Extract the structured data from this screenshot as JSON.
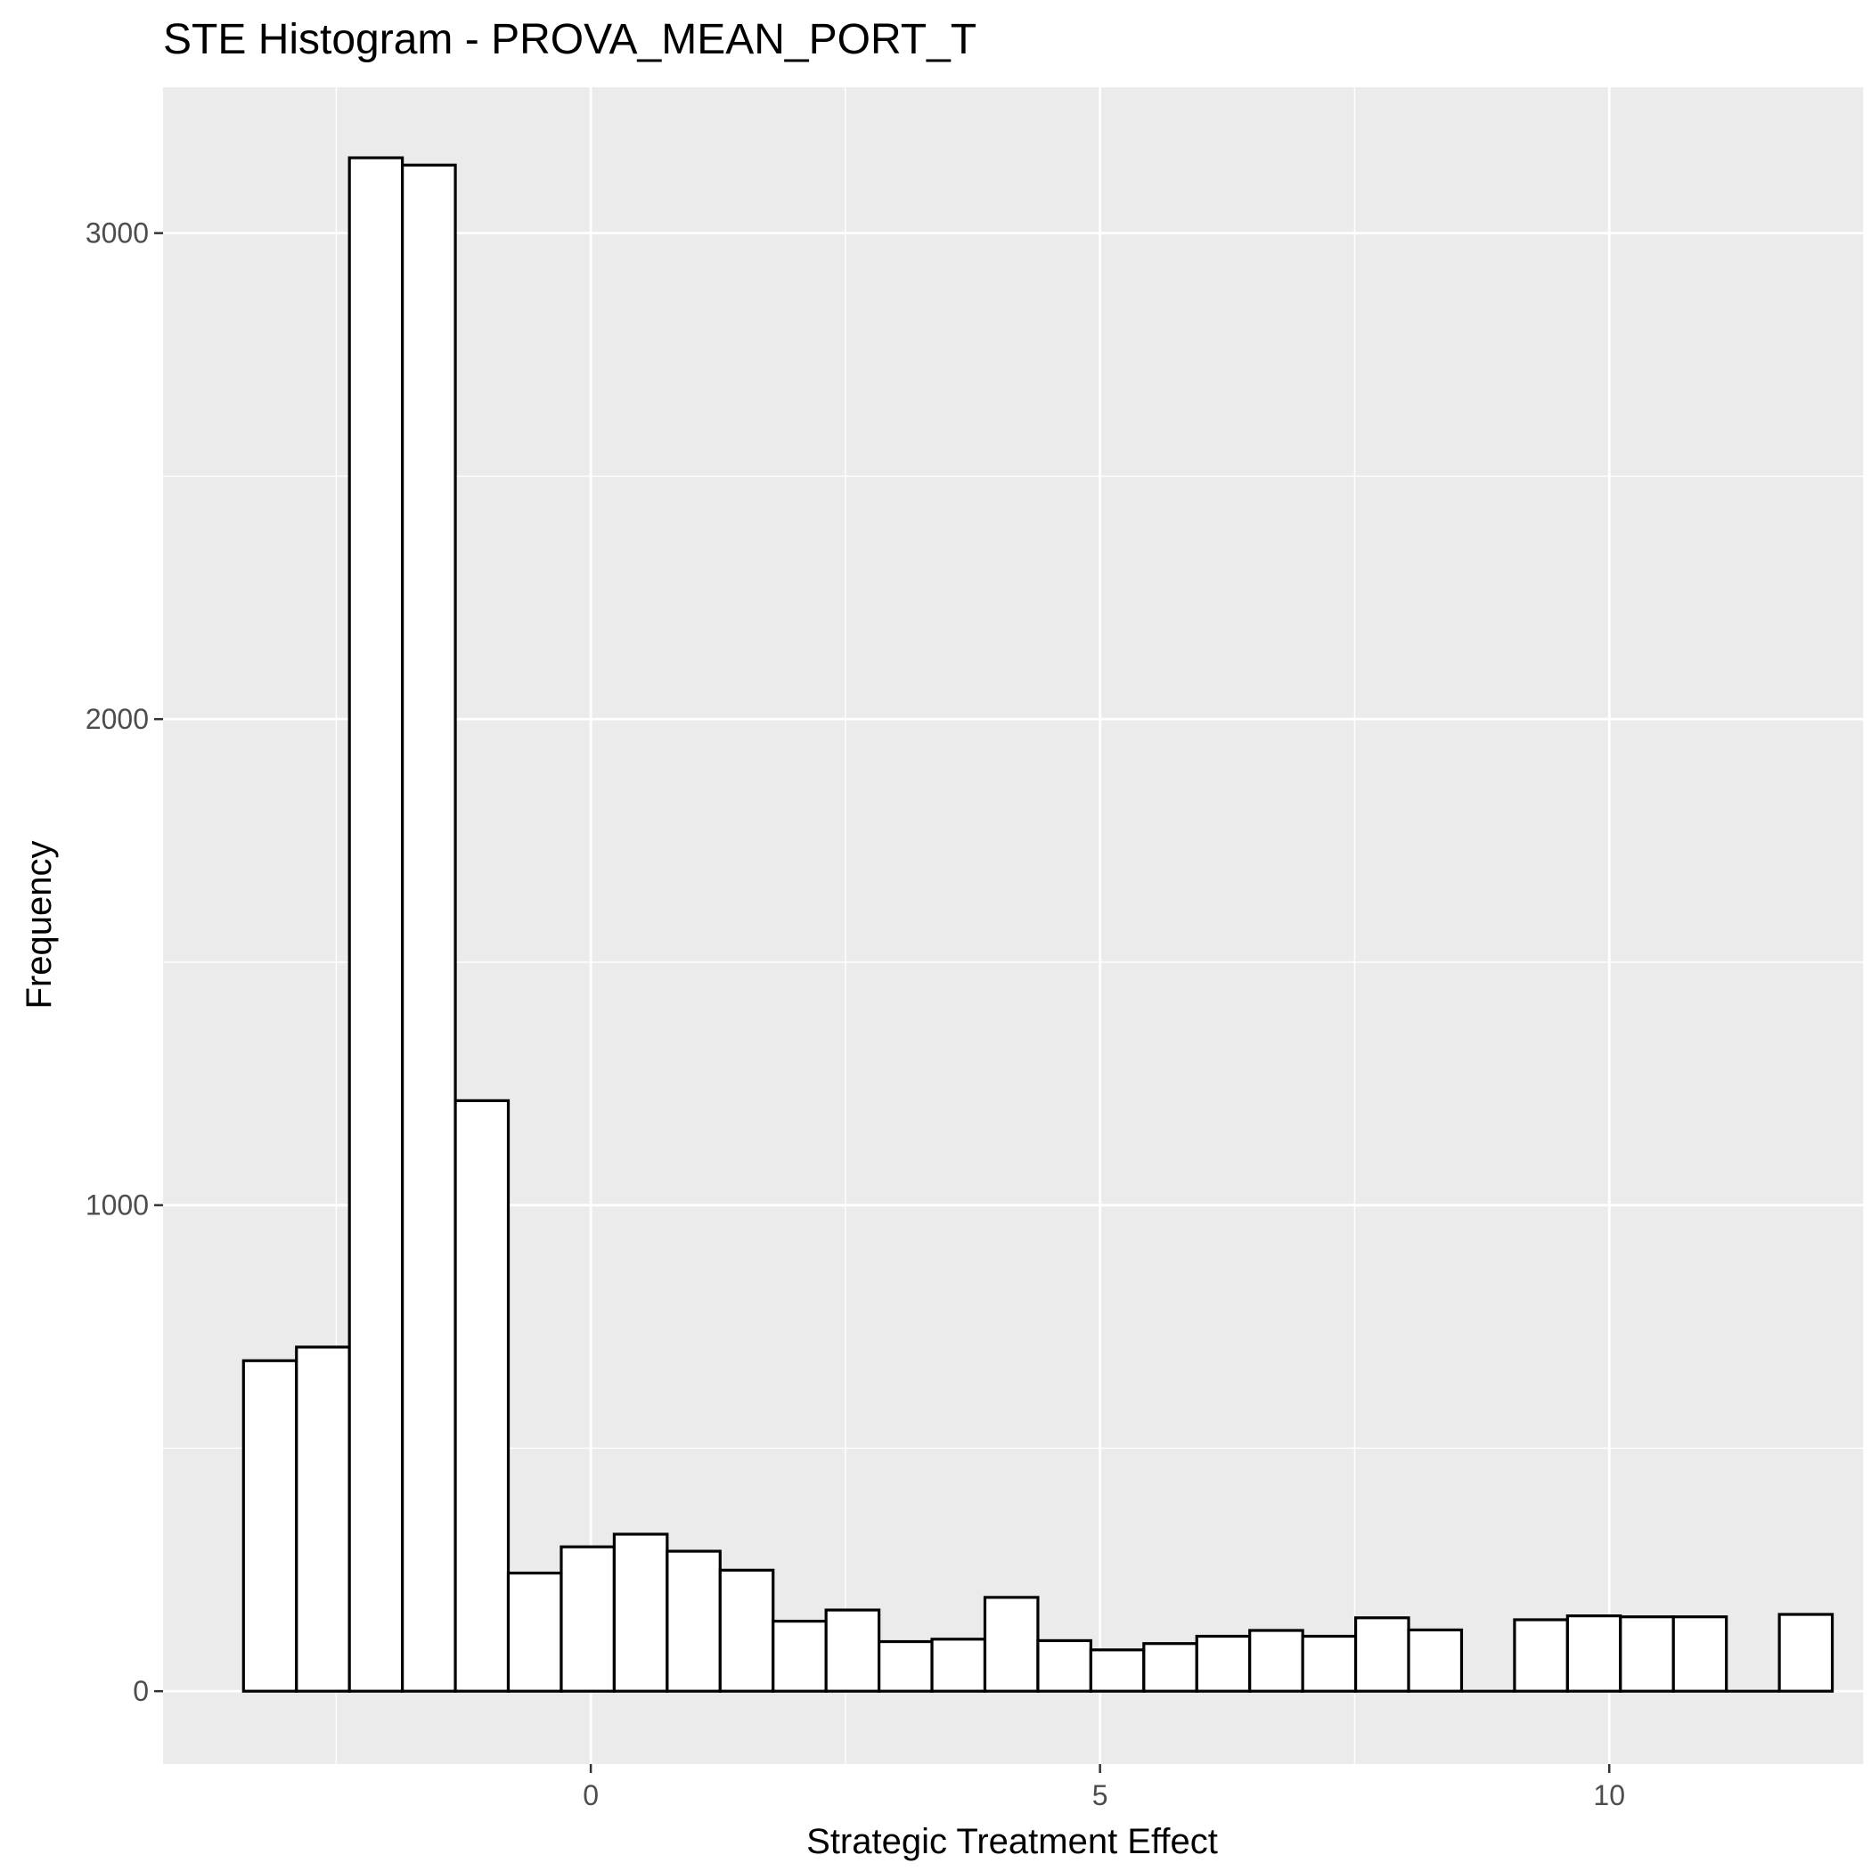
{
  "chart_data": {
    "type": "bar",
    "title": "STE Histogram -  PROVA_MEAN_PORT_T",
    "xlabel": "Strategic Treatment Effect",
    "ylabel": "Frequency",
    "xlim": [
      -4.2,
      12.5
    ],
    "ylim": [
      -150,
      3300
    ],
    "x_ticks": [
      0,
      5,
      10
    ],
    "y_ticks": [
      0,
      1000,
      2000,
      3000
    ],
    "grid": true,
    "panel_background": "#ebebeb",
    "grid_color": "#ffffff",
    "bar_fill": "#ffffff",
    "bar_outline": "#000000",
    "bin_width": 0.52,
    "bins": [
      {
        "x_start": -3.41,
        "x_end": -2.89,
        "count": 680
      },
      {
        "x_start": -2.89,
        "x_end": -2.37,
        "count": 708
      },
      {
        "x_start": -2.37,
        "x_end": -1.85,
        "count": 3155
      },
      {
        "x_start": -1.85,
        "x_end": -1.33,
        "count": 3140
      },
      {
        "x_start": -1.33,
        "x_end": -0.81,
        "count": 1215
      },
      {
        "x_start": -0.81,
        "x_end": -0.29,
        "count": 243
      },
      {
        "x_start": -0.29,
        "x_end": 0.23,
        "count": 297
      },
      {
        "x_start": 0.23,
        "x_end": 0.75,
        "count": 323
      },
      {
        "x_start": 0.75,
        "x_end": 1.27,
        "count": 288
      },
      {
        "x_start": 1.27,
        "x_end": 1.79,
        "count": 249
      },
      {
        "x_start": 1.79,
        "x_end": 2.31,
        "count": 144
      },
      {
        "x_start": 2.31,
        "x_end": 2.83,
        "count": 167
      },
      {
        "x_start": 2.83,
        "x_end": 3.35,
        "count": 102
      },
      {
        "x_start": 3.35,
        "x_end": 3.87,
        "count": 107
      },
      {
        "x_start": 3.87,
        "x_end": 4.39,
        "count": 193
      },
      {
        "x_start": 4.39,
        "x_end": 4.91,
        "count": 104
      },
      {
        "x_start": 4.91,
        "x_end": 5.43,
        "count": 85
      },
      {
        "x_start": 5.43,
        "x_end": 5.95,
        "count": 98
      },
      {
        "x_start": 5.95,
        "x_end": 6.47,
        "count": 113
      },
      {
        "x_start": 6.47,
        "x_end": 6.99,
        "count": 125
      },
      {
        "x_start": 6.99,
        "x_end": 7.51,
        "count": 113
      },
      {
        "x_start": 7.51,
        "x_end": 8.03,
        "count": 151
      },
      {
        "x_start": 8.03,
        "x_end": 8.55,
        "count": 126
      },
      {
        "x_start": 8.55,
        "x_end": 9.07,
        "count": 0
      },
      {
        "x_start": 9.07,
        "x_end": 9.59,
        "count": 147
      },
      {
        "x_start": 9.59,
        "x_end": 10.11,
        "count": 155
      },
      {
        "x_start": 10.11,
        "x_end": 10.63,
        "count": 153
      },
      {
        "x_start": 10.63,
        "x_end": 11.15,
        "count": 153
      },
      {
        "x_start": 11.15,
        "x_end": 11.67,
        "count": 0
      },
      {
        "x_start": 11.67,
        "x_end": 12.19,
        "count": 158
      }
    ]
  }
}
